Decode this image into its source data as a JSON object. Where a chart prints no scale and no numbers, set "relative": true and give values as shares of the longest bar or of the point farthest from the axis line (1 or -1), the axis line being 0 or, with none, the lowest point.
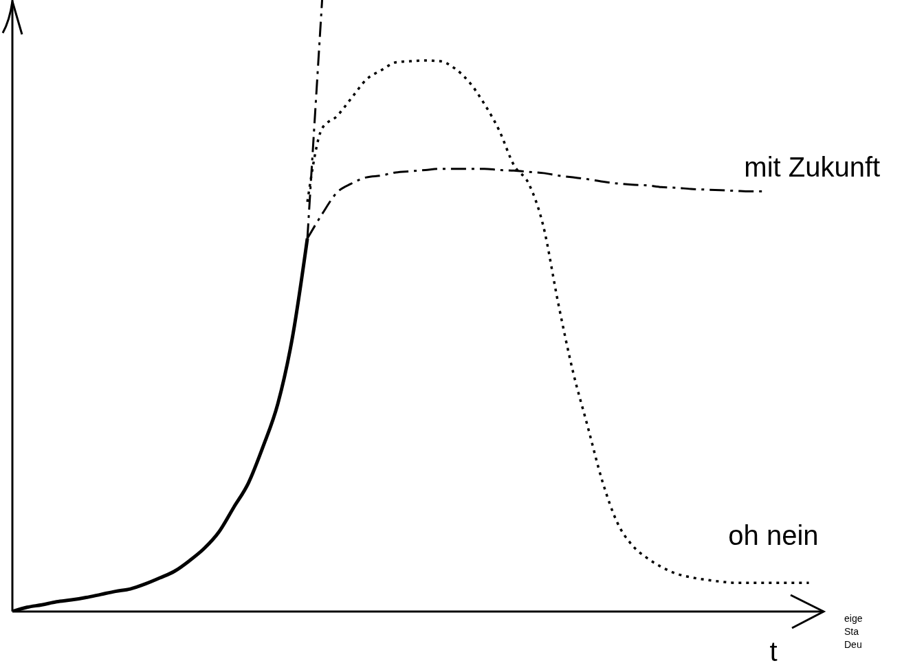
{
  "chart_data": {
    "type": "line",
    "relative": true,
    "xlabel": "t",
    "categories": [
      null,
      null,
      null,
      null,
      null,
      null,
      null,
      null,
      null,
      null,
      null,
      null,
      null,
      null,
      null,
      null,
      null,
      null,
      null,
      null,
      null,
      null,
      null,
      null,
      null,
      null,
      null,
      null,
      null,
      null,
      null,
      null,
      null,
      null,
      null,
      null,
      null,
      null,
      null,
      null,
      null,
      null,
      null,
      null,
      null,
      null,
      null,
      null,
      null,
      null,
      null,
      null,
      null,
      null,
      null,
      null
    ],
    "series": [
      {
        "color": "#000000",
        "line_style": "solid",
        "values": [
          0,
          0.007,
          0.011,
          0.016,
          0.019,
          0.023,
          0.028,
          0.033,
          0.037,
          0.045,
          0.055,
          0.066,
          0.083,
          0.103,
          0.13,
          0.17,
          0.21,
          0.27,
          0.34,
          0.45,
          0.61,
          null,
          null,
          null,
          null,
          null,
          null,
          null,
          null,
          null,
          null,
          null,
          null,
          null,
          null,
          null,
          null,
          null,
          null,
          null,
          null,
          null,
          null,
          null,
          null,
          null,
          null,
          null,
          null,
          null,
          null,
          null,
          null,
          null,
          null,
          null
        ]
      },
      {
        "color": "#000000",
        "line_style": "dashed",
        "values": [
          null,
          null,
          null,
          null,
          null,
          null,
          null,
          null,
          null,
          null,
          null,
          null,
          null,
          null,
          null,
          null,
          null,
          null,
          null,
          null,
          0.61,
          1.0,
          null,
          null,
          null,
          null,
          null,
          null,
          null,
          null,
          null,
          null,
          null,
          null,
          null,
          null,
          null,
          null,
          null,
          null,
          null,
          null,
          null,
          null,
          null,
          null,
          null,
          null,
          null,
          null,
          null,
          null,
          null,
          null,
          null,
          null
        ]
      },
      {
        "name": "mit Zukunft",
        "color": "#000000",
        "line_style": "dashed",
        "values": [
          null,
          null,
          null,
          null,
          null,
          null,
          null,
          null,
          null,
          null,
          null,
          null,
          null,
          null,
          null,
          null,
          null,
          null,
          null,
          null,
          0.61,
          0.65,
          0.685,
          0.7,
          0.71,
          0.713,
          0.718,
          0.72,
          0.722,
          0.724,
          0.724,
          0.724,
          0.724,
          0.722,
          0.721,
          0.719,
          0.717,
          0.713,
          0.71,
          0.707,
          0.703,
          0.7,
          0.698,
          0.697,
          0.694,
          0.693,
          0.691,
          0.69,
          0.689,
          0.688,
          0.687,
          0.687,
          null,
          null,
          null,
          null
        ]
      },
      {
        "name": "oh nein",
        "color": "#000000",
        "line_style": "dotted",
        "values": [
          null,
          null,
          null,
          null,
          null,
          null,
          null,
          null,
          null,
          null,
          null,
          null,
          null,
          null,
          null,
          null,
          null,
          null,
          null,
          null,
          0.67,
          0.79,
          0.81,
          0.84,
          0.87,
          0.885,
          0.898,
          0.9,
          0.901,
          0.9,
          0.888,
          0.865,
          0.83,
          0.787,
          0.73,
          0.7,
          0.63,
          0.505,
          0.393,
          0.303,
          0.213,
          0.146,
          0.109,
          0.088,
          0.073,
          0.062,
          0.056,
          0.052,
          0.049,
          0.047,
          0.047,
          0.047,
          0.047,
          0.047,
          0.047,
          null
        ]
      }
    ],
    "annotations": [
      "eige",
      "Sta",
      "Deu"
    ]
  }
}
